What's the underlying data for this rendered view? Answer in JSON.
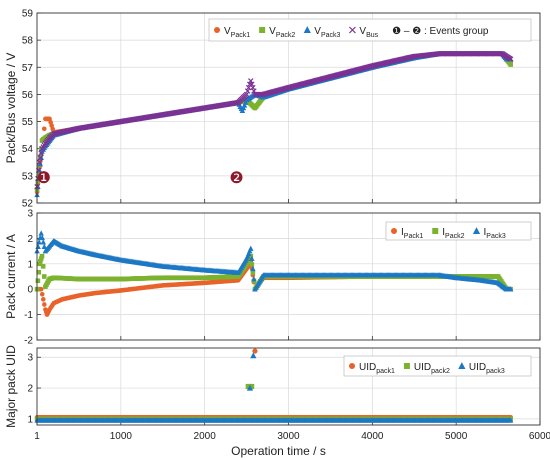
{
  "chart_data": [
    {
      "type": "scatter",
      "ylabel": "Pack/Bus voltage / V",
      "xlim": [
        0,
        6000
      ],
      "ylim": [
        52,
        59
      ],
      "yticks": [
        52,
        53,
        54,
        55,
        56,
        57,
        58,
        59
      ],
      "grid": true,
      "legend_placement": "top-right",
      "legend_note": "❶ – ❷ : Events group",
      "annotations": [
        "❶",
        "❷"
      ],
      "colors": {
        "VPack1": "#e8632a",
        "VPack2": "#7bb22e",
        "VPack3": "#1d78c4",
        "VBus": "#7b3294",
        "badge": "#8b1a2b"
      },
      "series": [
        {
          "name": "VPack1",
          "label_main": "V",
          "label_sub": "Pack1",
          "marker": "circle",
          "x": [
            1,
            30,
            60,
            100,
            120,
            150,
            200,
            500,
            1000,
            1500,
            2000,
            2400,
            2500,
            2600,
            2700,
            3000,
            3500,
            4000,
            4500,
            4800,
            5000,
            5300,
            5550,
            5600,
            5650
          ],
          "y": [
            52.4,
            53.3,
            54.0,
            55.1,
            55.1,
            55.1,
            54.6,
            54.75,
            55.0,
            55.25,
            55.5,
            55.7,
            55.8,
            55.5,
            55.9,
            56.2,
            56.6,
            57.0,
            57.35,
            57.5,
            57.5,
            57.5,
            57.5,
            57.3,
            57.2
          ]
        },
        {
          "name": "VPack2",
          "label_main": "V",
          "label_sub": "Pack2",
          "marker": "square",
          "x": [
            1,
            30,
            60,
            100,
            150,
            200,
            500,
            1000,
            1500,
            2000,
            2400,
            2500,
            2600,
            2700,
            3000,
            3500,
            4000,
            4500,
            4800,
            5000,
            5300,
            5550,
            5600,
            5650
          ],
          "y": [
            52.5,
            53.4,
            54.3,
            54.4,
            54.5,
            54.55,
            54.75,
            55.0,
            55.25,
            55.5,
            55.7,
            55.8,
            55.5,
            55.9,
            56.2,
            56.6,
            57.0,
            57.35,
            57.5,
            57.5,
            57.5,
            57.5,
            57.3,
            57.1
          ]
        },
        {
          "name": "VPack3",
          "label_main": "V",
          "label_sub": "Pack3",
          "marker": "triangle",
          "x": [
            1,
            30,
            60,
            100,
            150,
            200,
            500,
            1000,
            1500,
            2000,
            2400,
            2450,
            2500,
            2600,
            2700,
            3000,
            3500,
            4000,
            4500,
            4800,
            5000,
            5300,
            5550,
            5600,
            5650
          ],
          "y": [
            52.3,
            53.2,
            53.9,
            54.1,
            54.3,
            54.5,
            54.75,
            55.0,
            55.25,
            55.5,
            55.7,
            55.4,
            55.8,
            56.0,
            55.9,
            56.2,
            56.6,
            57.0,
            57.35,
            57.5,
            57.5,
            57.5,
            57.5,
            57.3,
            57.3
          ]
        },
        {
          "name": "VBus",
          "label_main": "V",
          "label_sub": "Bus",
          "marker": "x",
          "x": [
            1,
            30,
            60,
            100,
            150,
            200,
            500,
            1000,
            1500,
            2000,
            2400,
            2500,
            2550,
            2600,
            2700,
            3000,
            3500,
            4000,
            4500,
            4800,
            5000,
            5300,
            5550,
            5600,
            5650
          ],
          "y": [
            52.6,
            53.5,
            54.0,
            54.2,
            54.4,
            54.55,
            54.75,
            55.0,
            55.25,
            55.5,
            55.7,
            56.0,
            56.5,
            56.0,
            56.0,
            56.25,
            56.65,
            57.05,
            57.4,
            57.5,
            57.5,
            57.5,
            57.5,
            57.4,
            57.3
          ]
        }
      ]
    },
    {
      "type": "scatter",
      "ylabel": "Pack current / A",
      "xlim": [
        0,
        6000
      ],
      "ylim": [
        -2,
        3
      ],
      "yticks": [
        -2,
        -1,
        0,
        1,
        2,
        3
      ],
      "grid": true,
      "legend_placement": "top-right",
      "colors": {
        "IPack1": "#e8632a",
        "IPack2": "#7bb22e",
        "IPack3": "#1d78c4"
      },
      "series": [
        {
          "name": "IPack1",
          "label_main": "I",
          "label_sub": "Pack1",
          "marker": "circle",
          "x": [
            1,
            50,
            100,
            120,
            150,
            200,
            300,
            500,
            700,
            1000,
            1500,
            2000,
            2400,
            2500,
            2550,
            2600,
            2700,
            3000,
            4000,
            5000,
            5500,
            5600,
            5650
          ],
          "y": [
            0.0,
            0.0,
            -0.8,
            -1.0,
            -0.8,
            -0.55,
            -0.4,
            -0.25,
            -0.15,
            -0.05,
            0.15,
            0.25,
            0.35,
            0.8,
            1.1,
            0.0,
            0.45,
            0.45,
            0.5,
            0.5,
            0.5,
            0.0,
            0.0
          ]
        },
        {
          "name": "IPack2",
          "label_main": "I",
          "label_sub": "Pack2",
          "marker": "square",
          "x": [
            1,
            30,
            60,
            100,
            150,
            200,
            500,
            1000,
            1500,
            2000,
            2400,
            2500,
            2550,
            2600,
            2700,
            3000,
            4000,
            5000,
            5500,
            5600,
            5650
          ],
          "y": [
            0.0,
            1.0,
            1.3,
            0.1,
            0.4,
            0.45,
            0.4,
            0.4,
            0.45,
            0.45,
            0.5,
            1.0,
            1.3,
            0.0,
            0.5,
            0.5,
            0.5,
            0.5,
            0.5,
            0.0,
            0.0
          ]
        },
        {
          "name": "IPack3",
          "label_main": "I",
          "label_sub": "Pack3",
          "marker": "triangle",
          "x": [
            1,
            50,
            100,
            150,
            200,
            300,
            500,
            700,
            1000,
            1500,
            2000,
            2400,
            2500,
            2550,
            2600,
            2700,
            3000,
            4000,
            4800,
            5000,
            5300,
            5500,
            5600,
            5650
          ],
          "y": [
            1.5,
            2.2,
            1.5,
            1.7,
            1.9,
            1.7,
            1.5,
            1.35,
            1.15,
            0.9,
            0.75,
            0.65,
            1.2,
            1.6,
            0.0,
            0.55,
            0.55,
            0.55,
            0.55,
            0.45,
            0.35,
            0.25,
            0.0,
            0.0
          ]
        }
      ]
    },
    {
      "type": "scatter",
      "ylabel": "Major pack UID",
      "xlabel": "Operation time / s",
      "xlim": [
        0,
        6000
      ],
      "ylim": [
        0.8,
        3.3
      ],
      "yticks": [
        1,
        2,
        3
      ],
      "xticks": [
        1,
        1000,
        2000,
        3000,
        4000,
        5000,
        6000
      ],
      "grid": true,
      "legend_placement": "top-right",
      "colors": {
        "UIDpack1": "#e8632a",
        "UIDpack2": "#7bb22e",
        "UIDpack3": "#1d78c4"
      },
      "series": [
        {
          "name": "UIDpack1",
          "label_main": "UID",
          "label_sub": "pack1",
          "marker": "circle",
          "x": [
            1,
            5650
          ],
          "y": [
            1.05,
            1.05
          ],
          "event_points": [
            {
              "x": 2600,
              "y": 3.2
            }
          ]
        },
        {
          "name": "UIDpack2",
          "label_main": "UID",
          "label_sub": "pack2",
          "marker": "square",
          "x": [
            1,
            5650
          ],
          "y": [
            1.0,
            1.0
          ],
          "event_points": [
            {
              "x": 2520,
              "y": 2.05
            },
            {
              "x": 2560,
              "y": 2.05
            }
          ]
        },
        {
          "name": "UIDpack3",
          "label_main": "UID",
          "label_sub": "pack3",
          "marker": "triangle",
          "x": [
            1,
            5650
          ],
          "y": [
            0.95,
            0.95
          ],
          "event_points": [
            {
              "x": 2580,
              "y": 3.05
            },
            {
              "x": 2540,
              "y": 2.0
            }
          ]
        }
      ]
    }
  ]
}
